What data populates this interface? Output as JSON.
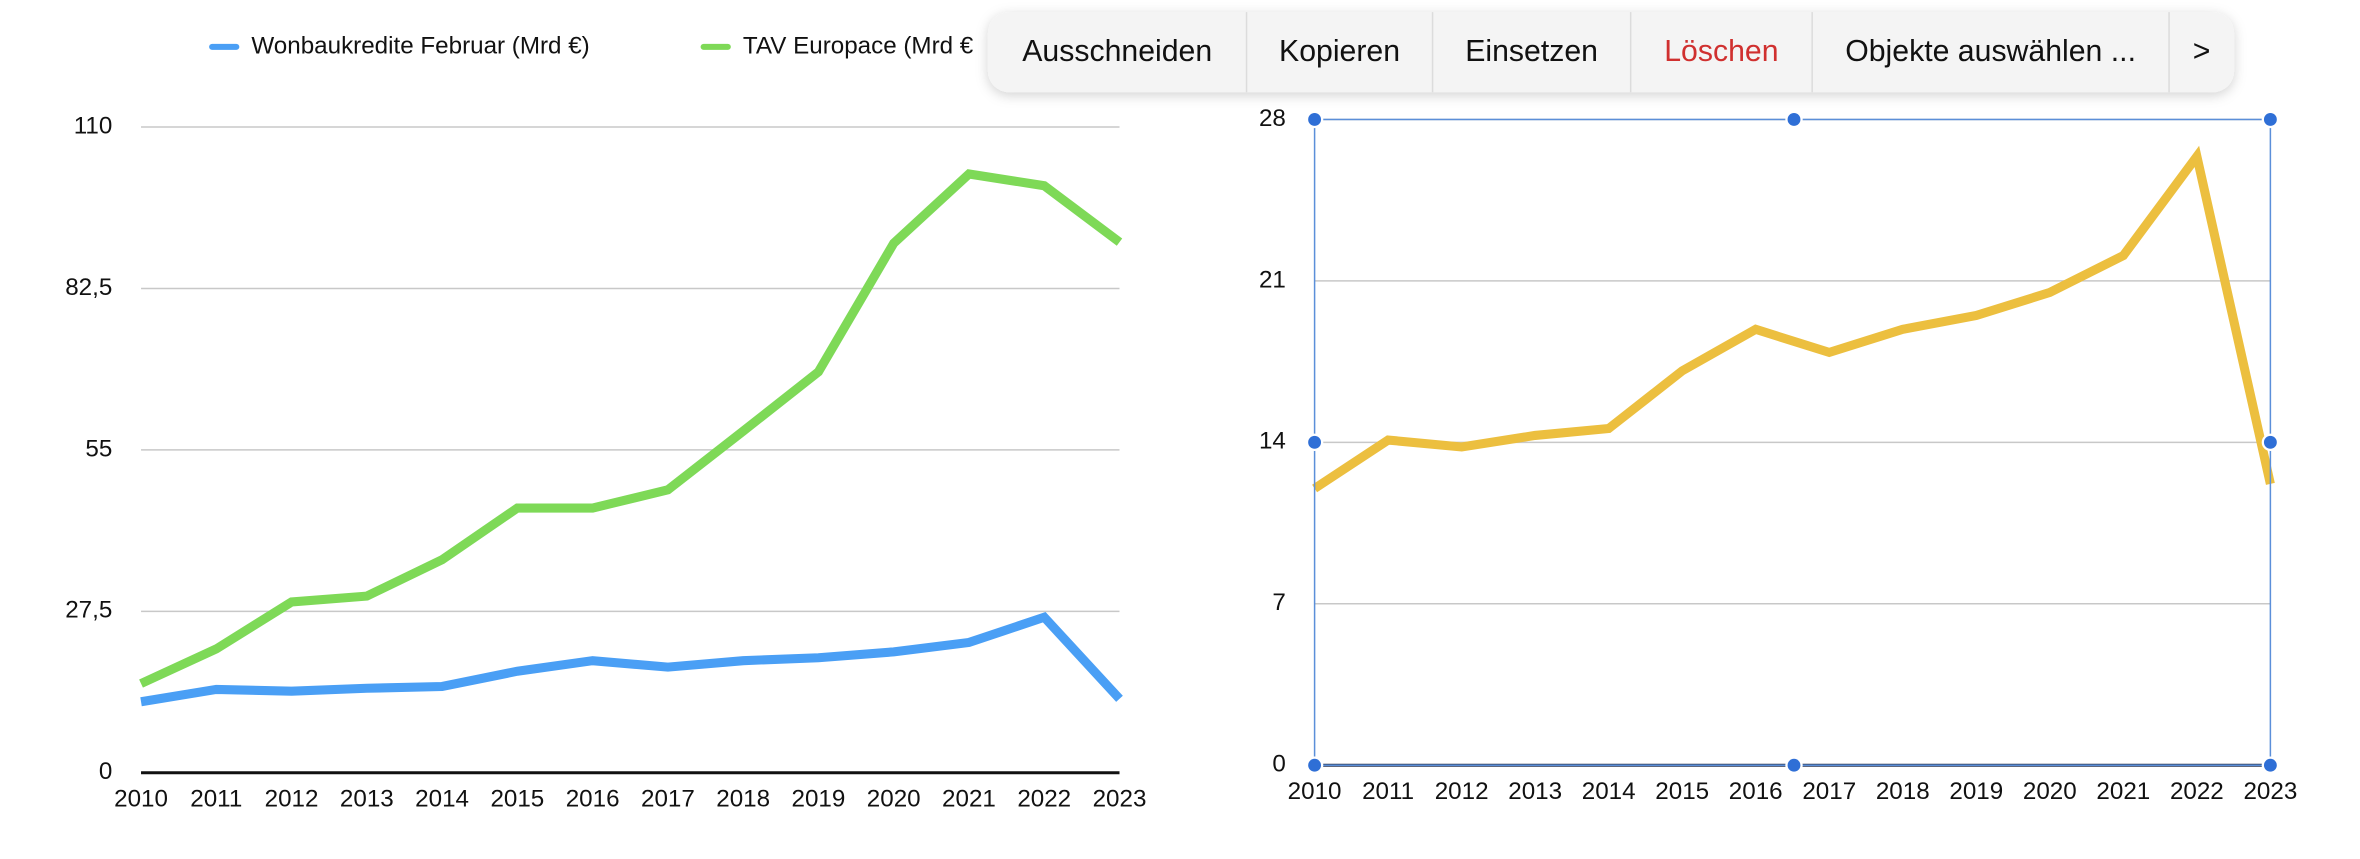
{
  "chart_data": [
    {
      "type": "line",
      "categories": [
        "2010",
        "2011",
        "2012",
        "2013",
        "2014",
        "2015",
        "2016",
        "2017",
        "2018",
        "2019",
        "2020",
        "2021",
        "2022",
        "2023"
      ],
      "series": [
        {
          "name": "Wonbaukredite Februar (Mrd €)",
          "color": "#4a9ff5",
          "values": [
            12.1,
            14.2,
            13.9,
            14.4,
            14.7,
            17.3,
            19.1,
            18.0,
            19.1,
            19.6,
            20.6,
            22.2,
            26.5,
            12.6
          ]
        },
        {
          "name": "TAV Europace (Mrd €",
          "color": "#7ed957",
          "values": [
            15.2,
            21.1,
            29.1,
            30.1,
            36.3,
            45.1,
            45.1,
            48.2,
            58.2,
            68.3,
            90.2,
            102.0,
            100.0,
            90.4
          ]
        }
      ],
      "ylim": [
        0,
        110
      ],
      "yticks": [
        0,
        {
          "value": 27.5,
          "label": "27,5"
        },
        55,
        {
          "value": 82.5,
          "label": "82,5"
        },
        110
      ],
      "grid": true
    },
    {
      "type": "line",
      "categories": [
        "2010",
        "2011",
        "2012",
        "2013",
        "2014",
        "2015",
        "2016",
        "2017",
        "2018",
        "2019",
        "2020",
        "2021",
        "2022",
        "2023"
      ],
      "series": [
        {
          "color": "#ecbf3f",
          "values": [
            12.0,
            14.1,
            13.8,
            14.3,
            14.6,
            17.1,
            18.9,
            17.9,
            18.9,
            19.5,
            20.5,
            22.1,
            26.4,
            12.2
          ]
        }
      ],
      "ylim": [
        0,
        28
      ],
      "yticks": [
        0,
        7,
        14,
        21,
        28
      ],
      "grid": true
    }
  ],
  "context_menu": {
    "items": [
      "Ausschneiden",
      "Kopieren",
      "Einsetzen",
      "Löschen",
      "Objekte auswählen ...",
      ">"
    ]
  }
}
